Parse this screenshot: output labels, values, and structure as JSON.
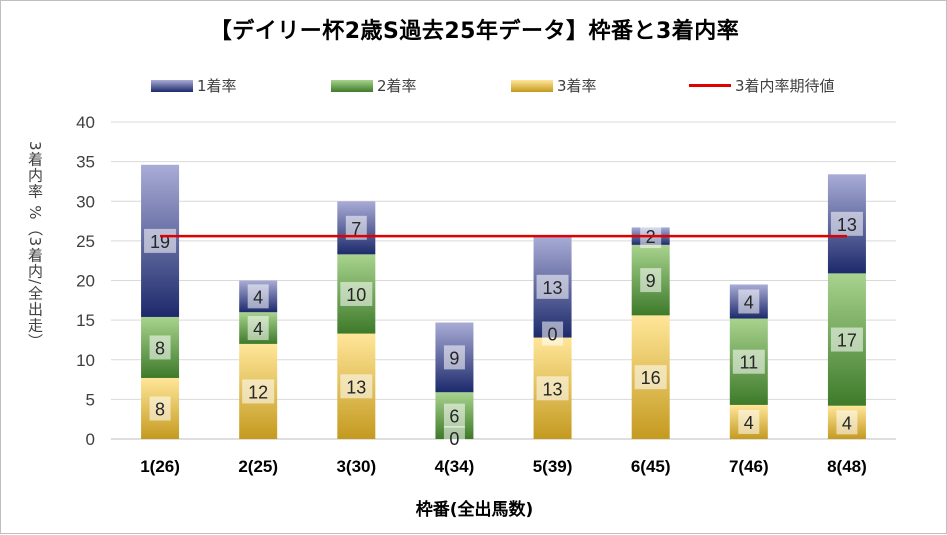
{
  "title": "【デイリー杯2歳S過去25年データ】枠番と3着内率",
  "legend": {
    "first": "1着率",
    "second": "2着率",
    "third": "3着率",
    "expected": "3着内率期待値"
  },
  "colors": {
    "first_top": "#a9acd6",
    "first_bottom": "#1d2a6b",
    "second_top": "#a8d38e",
    "second_bottom": "#3e7a2a",
    "third_top": "#ffe699",
    "third_bottom": "#c49a1f",
    "expected_line": "#e00000"
  },
  "chart_data": {
    "type": "bar",
    "stacked": true,
    "categories": [
      "1(26)",
      "2(25)",
      "3(30)",
      "4(34)",
      "5(39)",
      "6(45)",
      "7(46)",
      "8(48)"
    ],
    "series": [
      {
        "name": "3着率",
        "values": [
          7.7,
          12.0,
          13.3,
          0.0,
          12.8,
          15.6,
          4.3,
          4.2
        ],
        "labels": [
          "8",
          "12",
          "13",
          "0",
          "13",
          "16",
          "4",
          "4"
        ]
      },
      {
        "name": "2着率",
        "values": [
          7.7,
          4.0,
          10.0,
          5.9,
          0.0,
          8.9,
          10.9,
          16.7
        ],
        "labels": [
          "8",
          "4",
          "10",
          "6",
          "0",
          "9",
          "11",
          "17"
        ]
      },
      {
        "name": "1着率",
        "values": [
          19.2,
          4.0,
          6.7,
          8.8,
          12.8,
          2.2,
          4.3,
          12.5
        ],
        "labels": [
          "19",
          "4",
          "7",
          "9",
          "13",
          "2",
          "4",
          "13"
        ]
      }
    ],
    "expected_line": {
      "name": "3着内率期待値",
      "value": 25.6
    },
    "ylim": [
      0,
      40
    ],
    "yticks": [
      "0",
      "5",
      "10",
      "15",
      "20",
      "25",
      "30",
      "35",
      "40"
    ],
    "ylabel": "3着内率 %（3着内/全出走）",
    "xlabel": "枠番(全出馬数)"
  }
}
